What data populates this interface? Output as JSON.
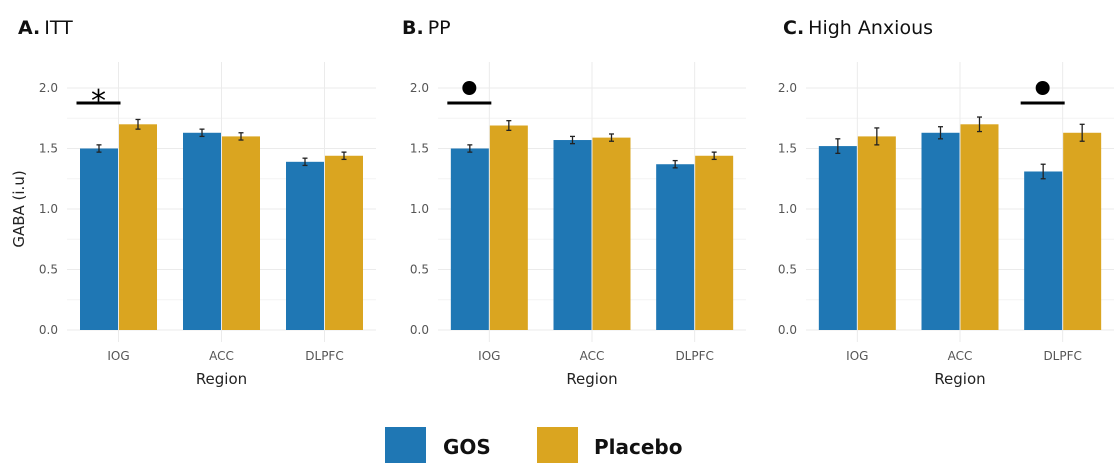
{
  "legend": {
    "items": [
      {
        "label": "GOS",
        "color": "#1f77b4"
      },
      {
        "label": "Placebo",
        "color": "#daa520"
      }
    ]
  },
  "chart_data": [
    {
      "type": "bar",
      "panel_letter": "A.",
      "title": "ITT",
      "categories": [
        "IOG",
        "ACC",
        "DLPFC"
      ],
      "xlabel": "Region",
      "ylabel": "GABA (i.u)",
      "ylim": [
        0,
        2.0
      ],
      "yticks": [
        "0.0",
        "0.5",
        "1.0",
        "1.5",
        "2.0"
      ],
      "series": [
        {
          "name": "GOS",
          "values": [
            1.5,
            1.63,
            1.39
          ],
          "errors": [
            0.03,
            0.03,
            0.03
          ]
        },
        {
          "name": "Placebo",
          "values": [
            1.7,
            1.6,
            1.44
          ],
          "errors": [
            0.04,
            0.03,
            0.03
          ]
        }
      ],
      "significance": [
        {
          "category": "IOG",
          "symbol": "*"
        }
      ]
    },
    {
      "type": "bar",
      "panel_letter": "B.",
      "title": "PP",
      "categories": [
        "IOG",
        "ACC",
        "DLPFC"
      ],
      "xlabel": "Region",
      "ylabel": "",
      "ylim": [
        0,
        2.0
      ],
      "yticks": [
        "0.0",
        "0.5",
        "1.0",
        "1.5",
        "2.0"
      ],
      "series": [
        {
          "name": "GOS",
          "values": [
            1.5,
            1.57,
            1.37
          ],
          "errors": [
            0.03,
            0.03,
            0.03
          ]
        },
        {
          "name": "Placebo",
          "values": [
            1.69,
            1.59,
            1.44
          ],
          "errors": [
            0.04,
            0.03,
            0.03
          ]
        }
      ],
      "significance": [
        {
          "category": "IOG",
          "symbol": "●"
        }
      ]
    },
    {
      "type": "bar",
      "panel_letter": "C.",
      "title": "High Anxious",
      "categories": [
        "IOG",
        "ACC",
        "DLPFC"
      ],
      "xlabel": "Region",
      "ylabel": "",
      "ylim": [
        0,
        2.0
      ],
      "yticks": [
        "0.0",
        "0.5",
        "1.0",
        "1.5",
        "2.0"
      ],
      "series": [
        {
          "name": "GOS",
          "values": [
            1.52,
            1.63,
            1.31
          ],
          "errors": [
            0.06,
            0.05,
            0.06
          ]
        },
        {
          "name": "Placebo",
          "values": [
            1.6,
            1.7,
            1.63
          ],
          "errors": [
            0.07,
            0.06,
            0.07
          ]
        }
      ],
      "significance": [
        {
          "category": "DLPFC",
          "symbol": "●"
        }
      ]
    }
  ]
}
